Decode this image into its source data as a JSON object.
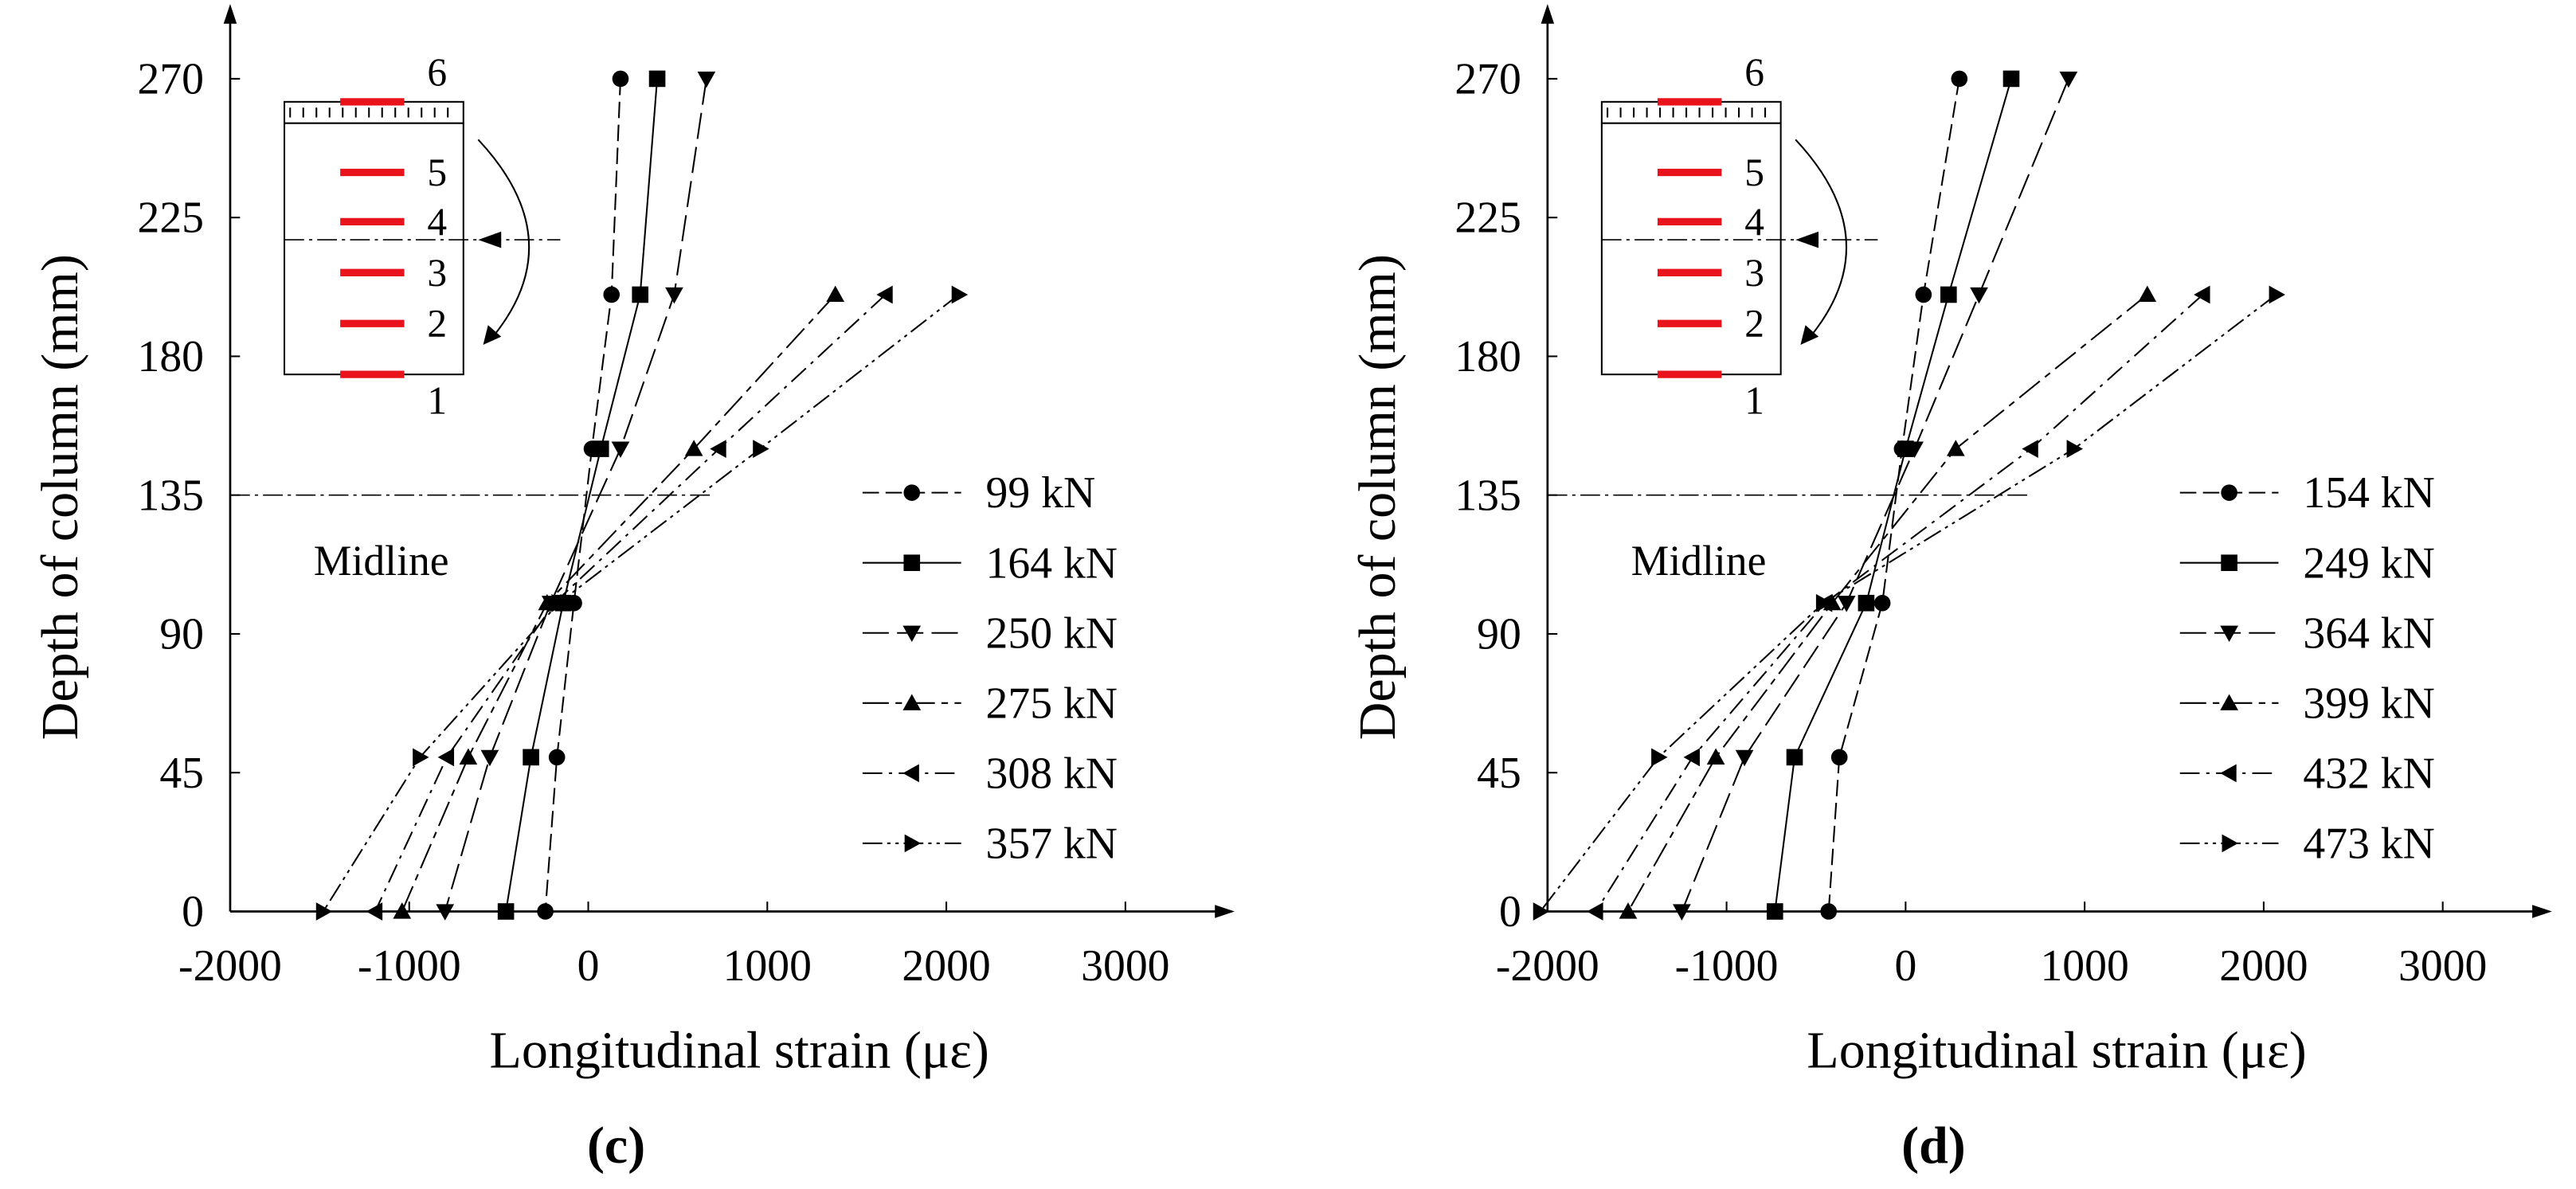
{
  "chart_data": [
    {
      "type": "line",
      "panel_label": "(c)",
      "xlabel": "Longitudinal strain (με)",
      "ylabel": "Depth of column (mm)",
      "xlim": [
        -2000,
        3500
      ],
      "ylim": [
        0,
        290
      ],
      "xticks": [
        -2000,
        -1000,
        0,
        1000,
        2000,
        3000
      ],
      "yticks": [
        0,
        45,
        90,
        135,
        180,
        225,
        270
      ],
      "depths": [
        270,
        200,
        150,
        100,
        50,
        0
      ],
      "annotation": {
        "text": "Midline",
        "y": 135
      },
      "gauge_labels": [
        "1",
        "2",
        "3",
        "4",
        "5",
        "6"
      ],
      "series": [
        {
          "name": "99 kN",
          "color": "#000000",
          "marker": "circle",
          "linestyle": "dash",
          "x": [
            180,
            130,
            20,
            -80,
            -175,
            -240
          ]
        },
        {
          "name": "164 kN",
          "color": "#000000",
          "marker": "square",
          "linestyle": "solid",
          "x": [
            385,
            290,
            70,
            -140,
            -320,
            -460
          ]
        },
        {
          "name": "250 kN",
          "color": "#000000",
          "marker": "triangle-down",
          "linestyle": "longdash",
          "x": [
            660,
            480,
            180,
            -210,
            -550,
            -800
          ]
        },
        {
          "name": "275 kN",
          "color": "#000000",
          "marker": "triangle-up",
          "linestyle": "longdashshort",
          "x": [
            null,
            1380,
            590,
            -230,
            -670,
            -1040
          ]
        },
        {
          "name": "308 kN",
          "color": "#000000",
          "marker": "triangle-left",
          "linestyle": "dashdot",
          "x": [
            null,
            1660,
            730,
            -190,
            -790,
            -1190
          ]
        },
        {
          "name": "357 kN",
          "color": "#000000",
          "marker": "triangle-right",
          "linestyle": "dashdotdot",
          "x": [
            null,
            2070,
            960,
            -165,
            -940,
            -1480
          ]
        }
      ]
    },
    {
      "type": "line",
      "panel_label": "(d)",
      "xlabel": "Longitudinal strain (με)",
      "ylabel": "Depth of column (mm)",
      "xlim": [
        -2000,
        3500
      ],
      "ylim": [
        0,
        290
      ],
      "xticks": [
        -2000,
        -1000,
        0,
        1000,
        2000,
        3000
      ],
      "yticks": [
        0,
        45,
        90,
        135,
        180,
        225,
        270
      ],
      "depths": [
        270,
        200,
        150,
        100,
        50,
        0
      ],
      "annotation": {
        "text": "Midline",
        "y": 135
      },
      "gauge_labels": [
        "1",
        "2",
        "3",
        "4",
        "5",
        "6"
      ],
      "series": [
        {
          "name": "154 kN",
          "color": "#000000",
          "marker": "circle",
          "linestyle": "dash",
          "x": [
            300,
            100,
            -20,
            -130,
            -370,
            -430
          ]
        },
        {
          "name": "249 kN",
          "color": "#000000",
          "marker": "square",
          "linestyle": "solid",
          "x": [
            590,
            240,
            0,
            -220,
            -620,
            -730
          ]
        },
        {
          "name": "364 kN",
          "color": "#000000",
          "marker": "triangle-down",
          "linestyle": "longdash",
          "x": [
            910,
            410,
            50,
            -330,
            -900,
            -1250
          ]
        },
        {
          "name": "399 kN",
          "color": "#000000",
          "marker": "triangle-up",
          "linestyle": "longdashshort",
          "x": [
            null,
            1350,
            280,
            -410,
            -1060,
            -1550
          ]
        },
        {
          "name": "432 kN",
          "color": "#000000",
          "marker": "triangle-left",
          "linestyle": "dashdot",
          "x": [
            null,
            1660,
            700,
            -450,
            -1190,
            -1730
          ]
        },
        {
          "name": "473 kN",
          "color": "#000000",
          "marker": "triangle-right",
          "linestyle": "dashdotdot",
          "x": [
            null,
            2070,
            940,
            -460,
            -1380,
            -2040
          ]
        }
      ]
    }
  ]
}
